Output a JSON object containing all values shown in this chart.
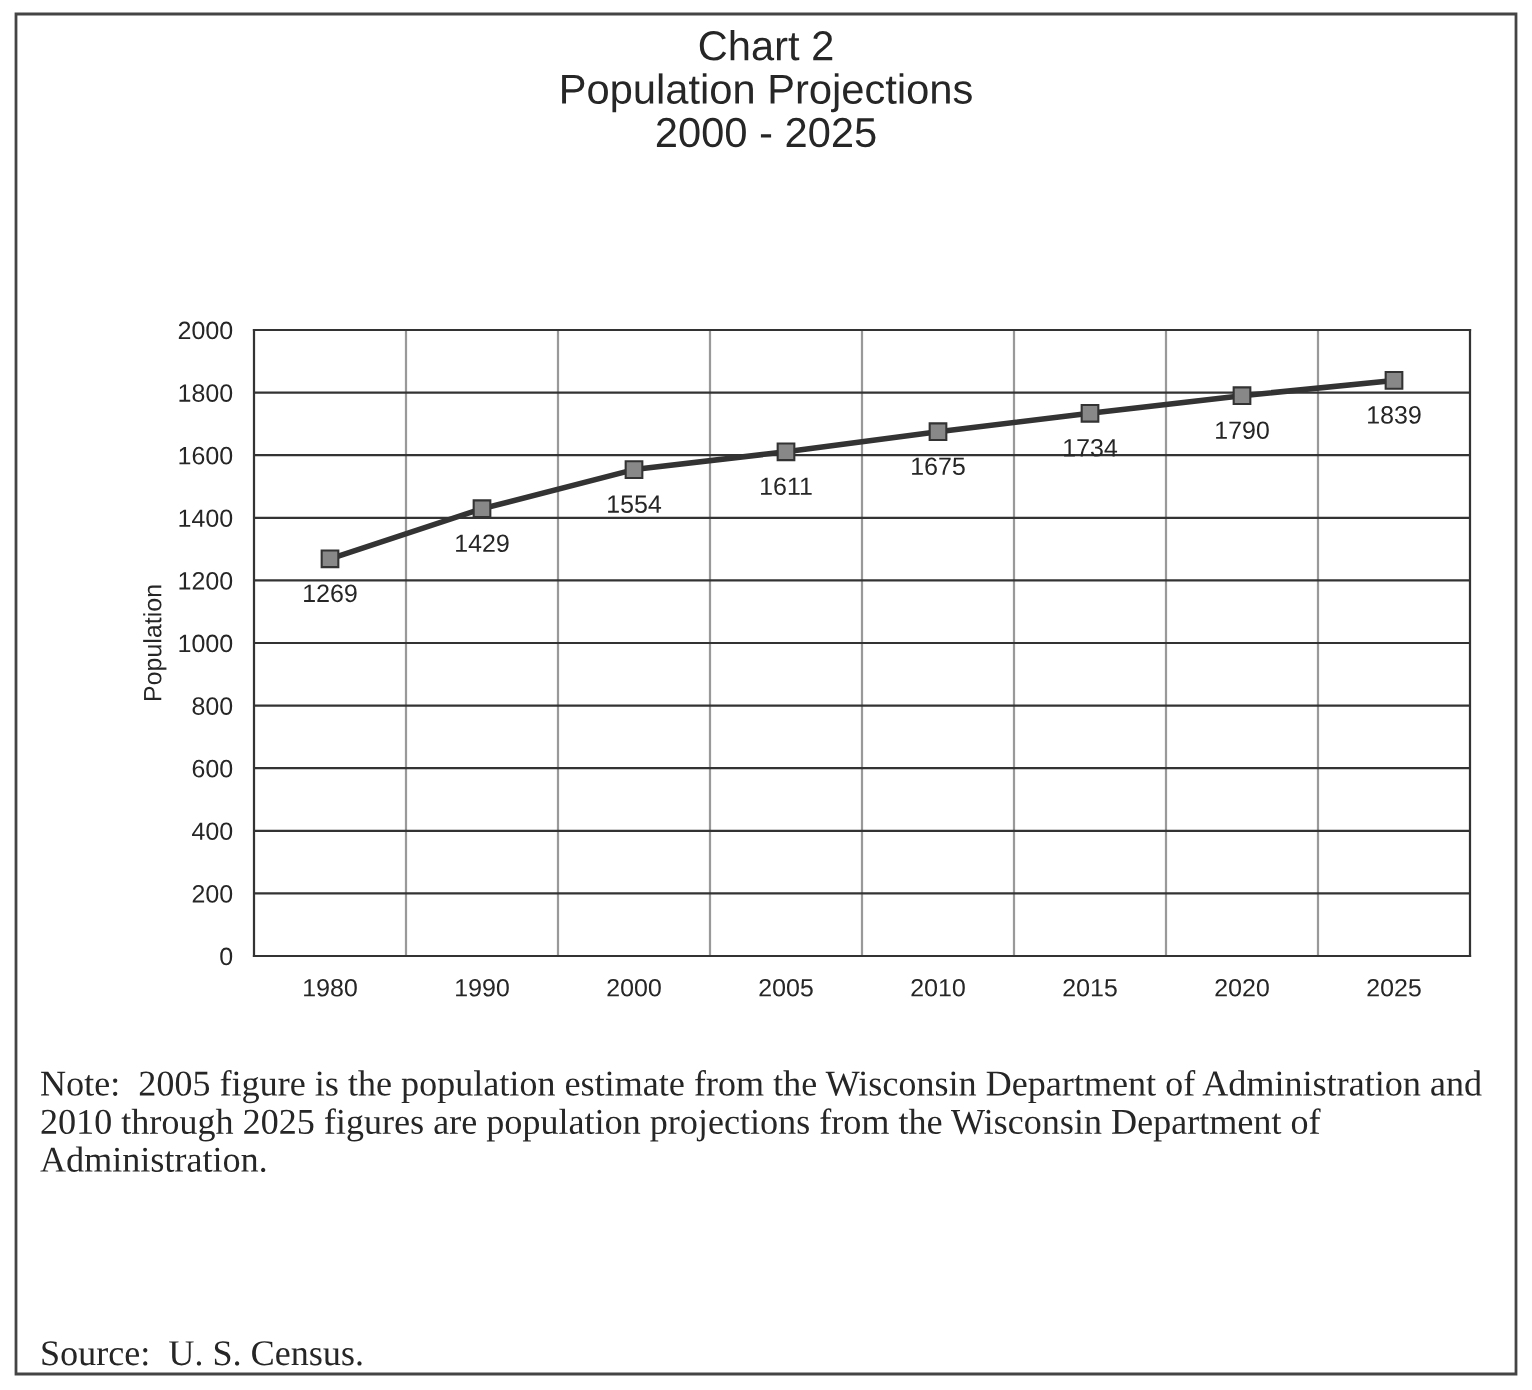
{
  "chart_data": {
    "type": "line",
    "title": "Chart 2\nPopulation Projections\n2000 - 2025",
    "ylabel": "Population",
    "categories": [
      "1980",
      "1990",
      "2000",
      "2005",
      "2010",
      "2015",
      "2020",
      "2025"
    ],
    "series": [
      {
        "color": "#333333",
        "values": [
          1269,
          1429,
          1554,
          1611,
          1675,
          1734,
          1790,
          1839
        ]
      }
    ],
    "ylim": [
      0,
      2000
    ],
    "yticks": [
      0,
      200,
      400,
      600,
      800,
      1000,
      1200,
      1400,
      1600,
      1800,
      2000
    ],
    "grid": true,
    "marker": "square",
    "line_style": "solid",
    "data_labels": true,
    "annotations": [
      "Note:  2005 figure is the population estimate from the Wisconsin Department of Administration and 2010 through 2025 figures are population projections from the Wisconsin Department of Administration.",
      "Source:  U. S. Census."
    ]
  }
}
